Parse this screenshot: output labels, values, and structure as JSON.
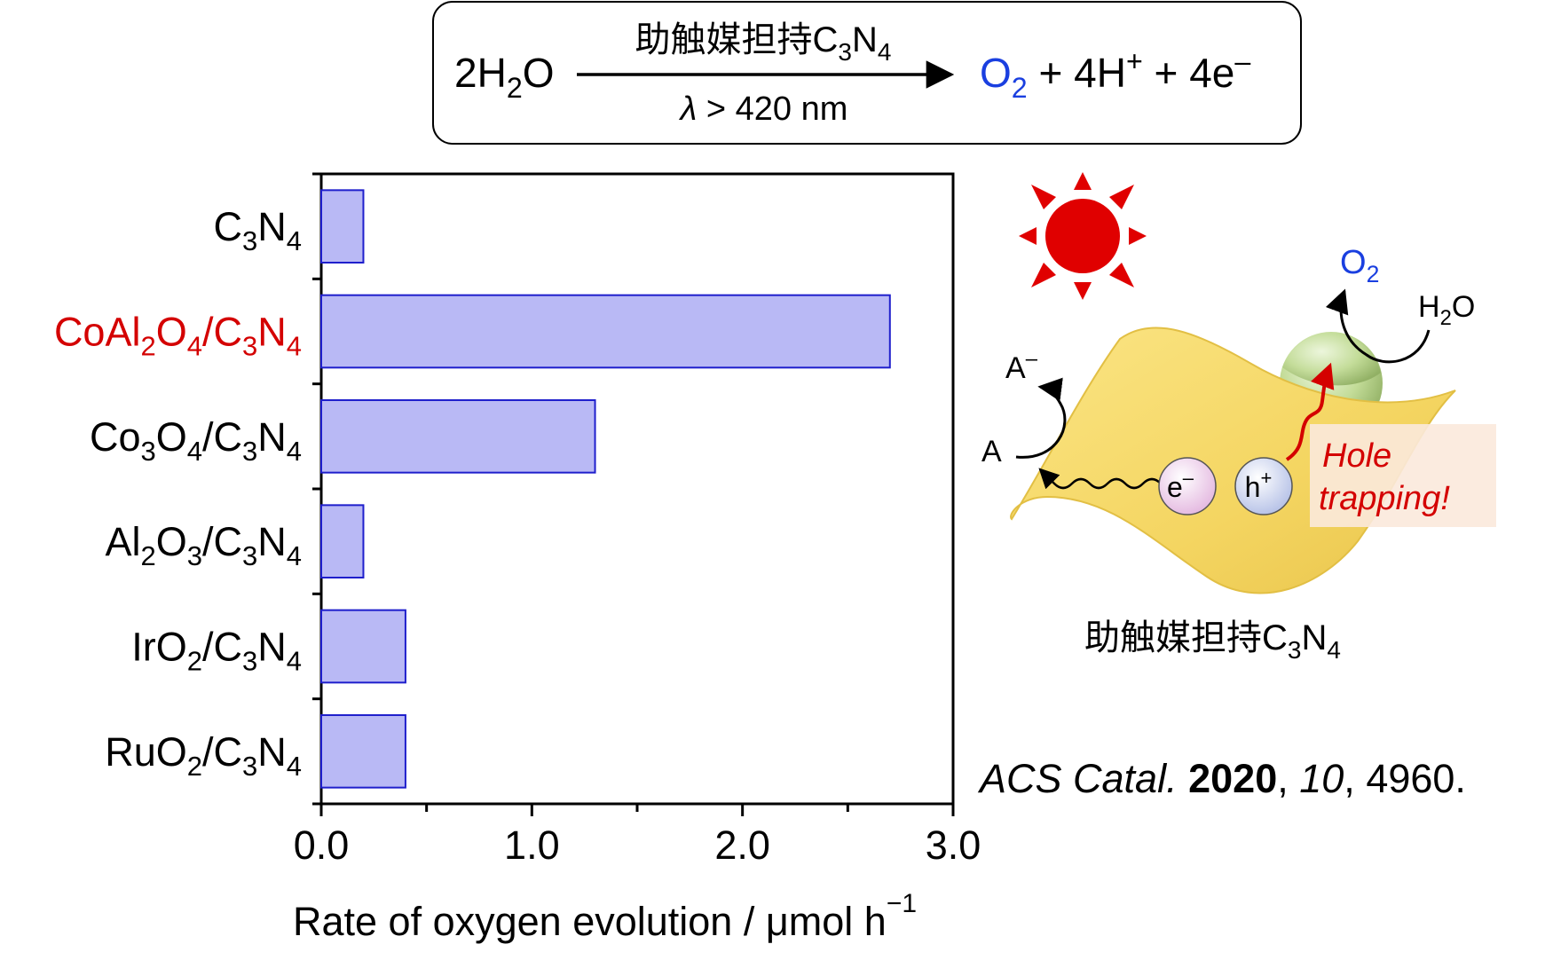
{
  "equation": {
    "reactant": {
      "coef": "2",
      "a": "H",
      "sub": "2",
      "b": "O"
    },
    "condition_top": {
      "prefix": "助触媒担持",
      "c": "C",
      "c_sub": "3",
      "n": "N",
      "n_sub": "4"
    },
    "condition_bottom": {
      "lambda": "λ",
      "rest": " > 420 nm"
    },
    "product_o2": {
      "o": "O",
      "sub": "2"
    },
    "plus1": " + ",
    "proton": {
      "text": "4H",
      "sup": "+"
    },
    "plus2": " + ",
    "electron": {
      "text": "4e",
      "sup": "–"
    },
    "product_o2_color": "#1a3fe0"
  },
  "chart_data": {
    "type": "bar",
    "orientation": "horizontal",
    "categories": [
      "C3N4",
      "CoAl2O4/C3N4",
      "Co3O4/C3N4",
      "Al2O3/C3N4",
      "IrO2/C3N4",
      "RuO2/C3N4"
    ],
    "values": [
      0.2,
      2.7,
      1.3,
      0.2,
      0.4,
      0.4
    ],
    "highlight_category": "CoAl2O4/C3N4",
    "highlight_color": "#d40000",
    "bar_fill": "#b9b9f5",
    "bar_stroke": "#1f1fcc",
    "xlim": [
      0,
      3.0
    ],
    "xticks": [
      "0.0",
      "1.0",
      "2.0",
      "3.0"
    ],
    "xlabel": "Rate of oxygen evolution / μmol h",
    "xlabel_sup": "−1",
    "grid": false
  },
  "category_labels": [
    {
      "parts": [
        [
          "C",
          ""
        ],
        [
          "3",
          "sub"
        ],
        [
          "N",
          ""
        ],
        [
          "4",
          "sub"
        ]
      ]
    },
    {
      "parts": [
        [
          "CoAl",
          ""
        ],
        [
          "2",
          "sub"
        ],
        [
          "O",
          ""
        ],
        [
          "4",
          "sub"
        ],
        [
          "/C",
          ""
        ],
        [
          "3",
          "sub"
        ],
        [
          "N",
          ""
        ],
        [
          "4",
          "sub"
        ]
      ]
    },
    {
      "parts": [
        [
          "Co",
          ""
        ],
        [
          "3",
          "sub"
        ],
        [
          "O",
          ""
        ],
        [
          "4",
          "sub"
        ],
        [
          "/C",
          ""
        ],
        [
          "3",
          "sub"
        ],
        [
          "N",
          ""
        ],
        [
          "4",
          "sub"
        ]
      ]
    },
    {
      "parts": [
        [
          "Al",
          ""
        ],
        [
          "2",
          "sub"
        ],
        [
          "O",
          ""
        ],
        [
          "3",
          "sub"
        ],
        [
          "/C",
          ""
        ],
        [
          "3",
          "sub"
        ],
        [
          "N",
          ""
        ],
        [
          "4",
          "sub"
        ]
      ]
    },
    {
      "parts": [
        [
          "IrO",
          ""
        ],
        [
          "2",
          "sub"
        ],
        [
          "/C",
          ""
        ],
        [
          "3",
          "sub"
        ],
        [
          "N",
          ""
        ],
        [
          "4",
          "sub"
        ]
      ]
    },
    {
      "parts": [
        [
          "RuO",
          ""
        ],
        [
          "2",
          "sub"
        ],
        [
          "/C",
          ""
        ],
        [
          "3",
          "sub"
        ],
        [
          "N",
          ""
        ],
        [
          "4",
          "sub"
        ]
      ]
    }
  ],
  "scheme": {
    "o2": {
      "o": "O",
      "sub": "2"
    },
    "h2o": {
      "a": "H",
      "sub": "2",
      "b": "O"
    },
    "a_minus": {
      "a": "A",
      "sup": "–"
    },
    "a": "A",
    "electron": {
      "e": "e",
      "sup": "–"
    },
    "hole": {
      "h": "h",
      "sup": "+"
    },
    "trap_line1": "Hole",
    "trap_line2": "trapping!",
    "caption": {
      "prefix": "助触媒担持",
      "c": "C",
      "c_sub": "3",
      "n": "N",
      "n_sub": "4"
    },
    "icons": [
      "sun-icon"
    ],
    "sun_color": "#e00000",
    "sheet_color": "#f5d75a",
    "cocatalyst_color": "#b9d98a"
  },
  "citation": {
    "journal": "ACS Catal.",
    "year": "2020",
    "sep1": ", ",
    "volume": "10",
    "sep2": ", ",
    "pages": "4960."
  }
}
